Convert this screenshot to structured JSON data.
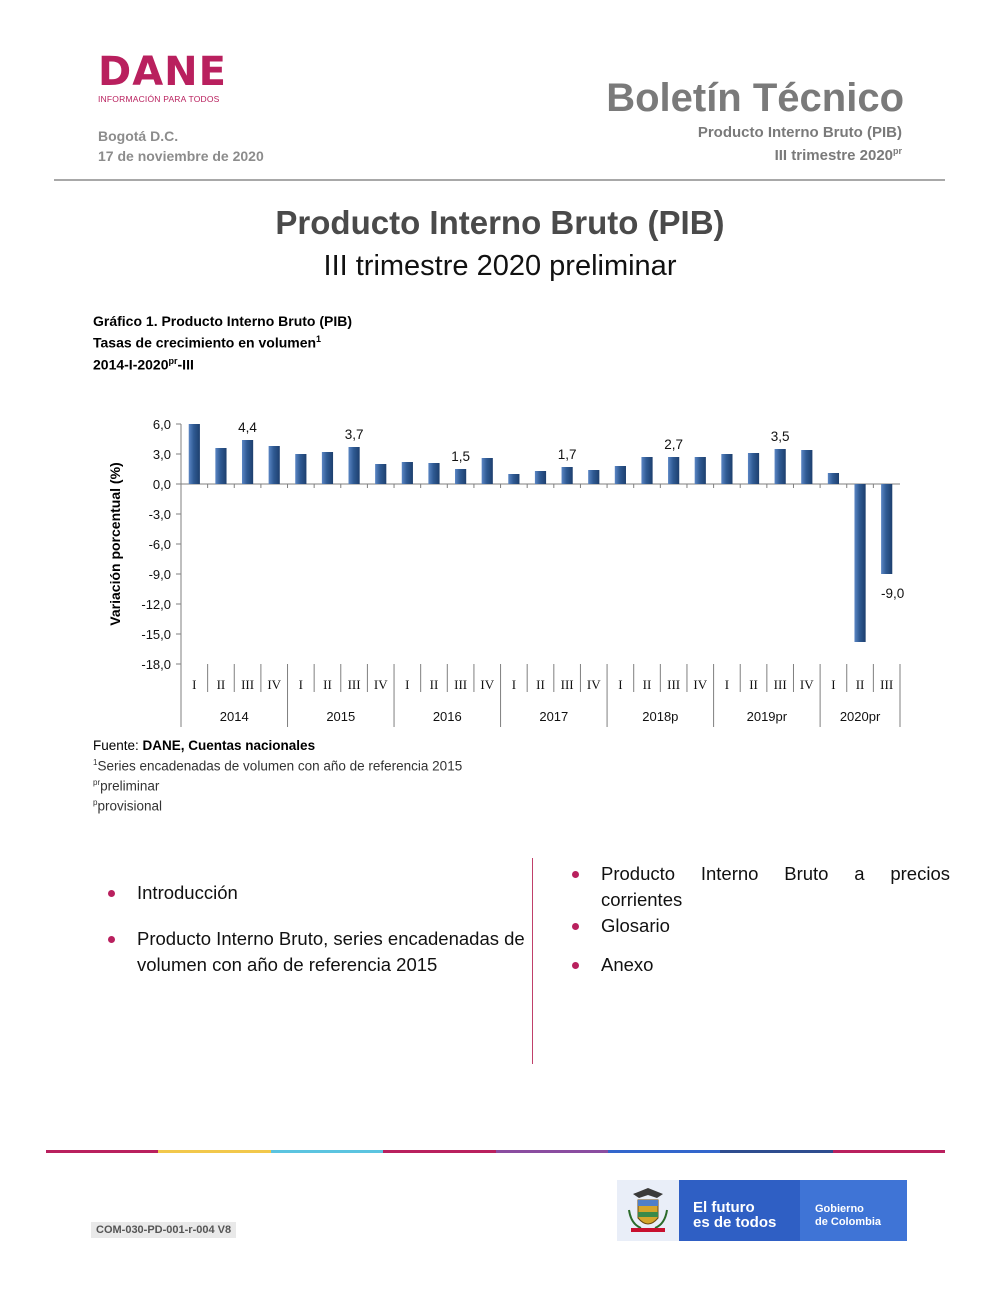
{
  "header": {
    "logo_word": "DANE",
    "logo_tagline": "INFORMACIÓN PARA TODOS",
    "city": "Bogotá D.C.",
    "date": "17 de noviembre de 2020",
    "bulletin_title": "Boletín Técnico",
    "bulletin_subtitle": "Producto Interno Bruto (PIB)",
    "bulletin_period": "III trimestre 2020",
    "bulletin_period_sup": "pr"
  },
  "main": {
    "title": "Producto Interno Bruto (PIB)",
    "subtitle": "III trimestre 2020 preliminar"
  },
  "graphic": {
    "title": "Gráfico 1. Producto Interno Bruto (PIB)",
    "line2": "Tasas de crecimiento en volumen",
    "line2_sup": "1",
    "line3_a": "2014-I-2020",
    "line3_sup": "pr",
    "line3_b": "-III"
  },
  "chart_data": {
    "type": "bar",
    "ylabel": "Variación porcentual  (%)",
    "ylim": [
      -18,
      6
    ],
    "yticks": [
      "6,0",
      "3,0",
      "0,0",
      "-3,0",
      "-6,0",
      "-9,0",
      "-12,0",
      "-15,0",
      "-18,0"
    ],
    "ytick_values": [
      6,
      3,
      0,
      -3,
      -6,
      -9,
      -12,
      -15,
      -18
    ],
    "categories": [
      "I",
      "II",
      "III",
      "IV",
      "I",
      "II",
      "III",
      "IV",
      "I",
      "II",
      "III",
      "IV",
      "I",
      "II",
      "III",
      "IV",
      "I",
      "II",
      "III",
      "IV",
      "I",
      "II",
      "III",
      "IV",
      "I",
      "II",
      "III"
    ],
    "years": [
      "2014",
      "2015",
      "2016",
      "2017",
      "2018p",
      "2019pr",
      "2020pr"
    ],
    "year_quarter_counts": [
      4,
      4,
      4,
      4,
      4,
      4,
      3
    ],
    "values": [
      6.0,
      3.6,
      4.4,
      3.8,
      3.0,
      3.2,
      3.7,
      2.0,
      2.2,
      2.1,
      1.5,
      2.6,
      1.0,
      1.3,
      1.7,
      1.4,
      1.8,
      2.7,
      2.7,
      2.7,
      3.0,
      3.1,
      3.5,
      3.4,
      1.1,
      -15.8,
      -9.0
    ],
    "data_labels": [
      {
        "index": 2,
        "text": "4,4"
      },
      {
        "index": 6,
        "text": "3,7"
      },
      {
        "index": 10,
        "text": "1,5"
      },
      {
        "index": 14,
        "text": "1,7"
      },
      {
        "index": 18,
        "text": "2,7"
      },
      {
        "index": 22,
        "text": "3,5"
      },
      {
        "index": 26,
        "text": "-9,0"
      }
    ],
    "bar_color": "#2f5a93"
  },
  "notes": {
    "fuente_label": "Fuente: ",
    "fuente_value": "DANE, Cuentas nacionales",
    "n1_sup": "1",
    "n1": "Series encadenadas de volumen con año de referencia 2015",
    "n2_sup": "pr",
    "n2": "preliminar",
    "n3_sup": "p",
    "n3": "provisional"
  },
  "toc": {
    "left": [
      "Introducción",
      "Producto Interno Bruto, series encadenadas de volumen con año de referencia 2015"
    ],
    "right": [
      "Producto Interno Bruto a precios corrientes",
      "Glosario",
      "Anexo"
    ]
  },
  "footer": {
    "code": "COM-030-PD-001-r-004 V8",
    "gov_slogan_1": "El futuro",
    "gov_slogan_2": "es de todos",
    "gov_name_1": "Gobierno",
    "gov_name_2": "de Colombia"
  },
  "colors": {
    "accent": "#b9205e",
    "gov_blue": "#3366cc",
    "line_segments": [
      "#b9205e",
      "#f2c84b",
      "#5bc4e0",
      "#b9205e",
      "#8a4da0",
      "#3366cc",
      "#2f4d8f",
      "#b9205e"
    ]
  }
}
